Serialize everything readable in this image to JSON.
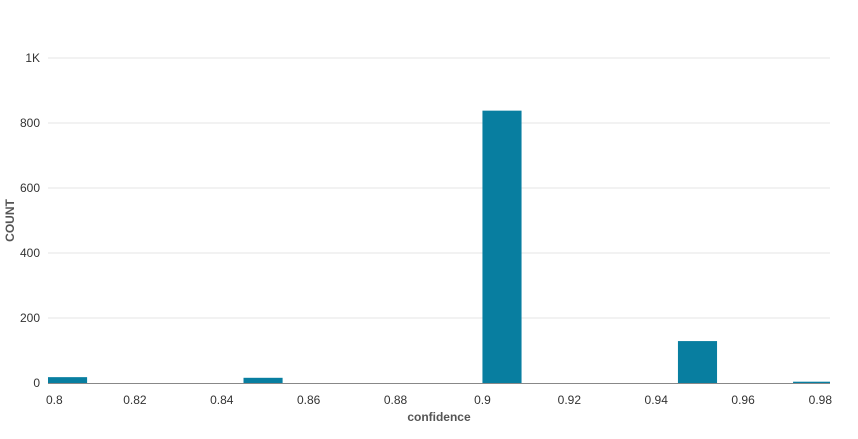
{
  "chart_data": {
    "type": "bar",
    "xlabel": "confidence",
    "ylabel": "COUNT",
    "xlim": [
      0.8,
      0.98
    ],
    "ylim": [
      0,
      1000
    ],
    "x_ticks": [
      {
        "value": 0.8,
        "label": "0.8"
      },
      {
        "value": 0.82,
        "label": "0.82"
      },
      {
        "value": 0.84,
        "label": "0.84"
      },
      {
        "value": 0.86,
        "label": "0.86"
      },
      {
        "value": 0.88,
        "label": "0.88"
      },
      {
        "value": 0.9,
        "label": "0.9"
      },
      {
        "value": 0.92,
        "label": "0.92"
      },
      {
        "value": 0.94,
        "label": "0.94"
      },
      {
        "value": 0.96,
        "label": "0.96"
      },
      {
        "value": 0.98,
        "label": "0.98"
      }
    ],
    "y_ticks": [
      {
        "value": 0,
        "label": "0"
      },
      {
        "value": 200,
        "label": "200"
      },
      {
        "value": 400,
        "label": "400"
      },
      {
        "value": 600,
        "label": "600"
      },
      {
        "value": 800,
        "label": "800"
      },
      {
        "value": 1000,
        "label": "1K"
      }
    ],
    "bins": [
      {
        "start": 0.8,
        "end": 0.809,
        "count": 18
      },
      {
        "start": 0.845,
        "end": 0.854,
        "count": 16
      },
      {
        "start": 0.9,
        "end": 0.909,
        "count": 838
      },
      {
        "start": 0.945,
        "end": 0.954,
        "count": 129
      },
      {
        "start": 0.9715,
        "end": 0.98,
        "count": 4
      }
    ],
    "bar_color": "#087ea0",
    "grid": true
  }
}
